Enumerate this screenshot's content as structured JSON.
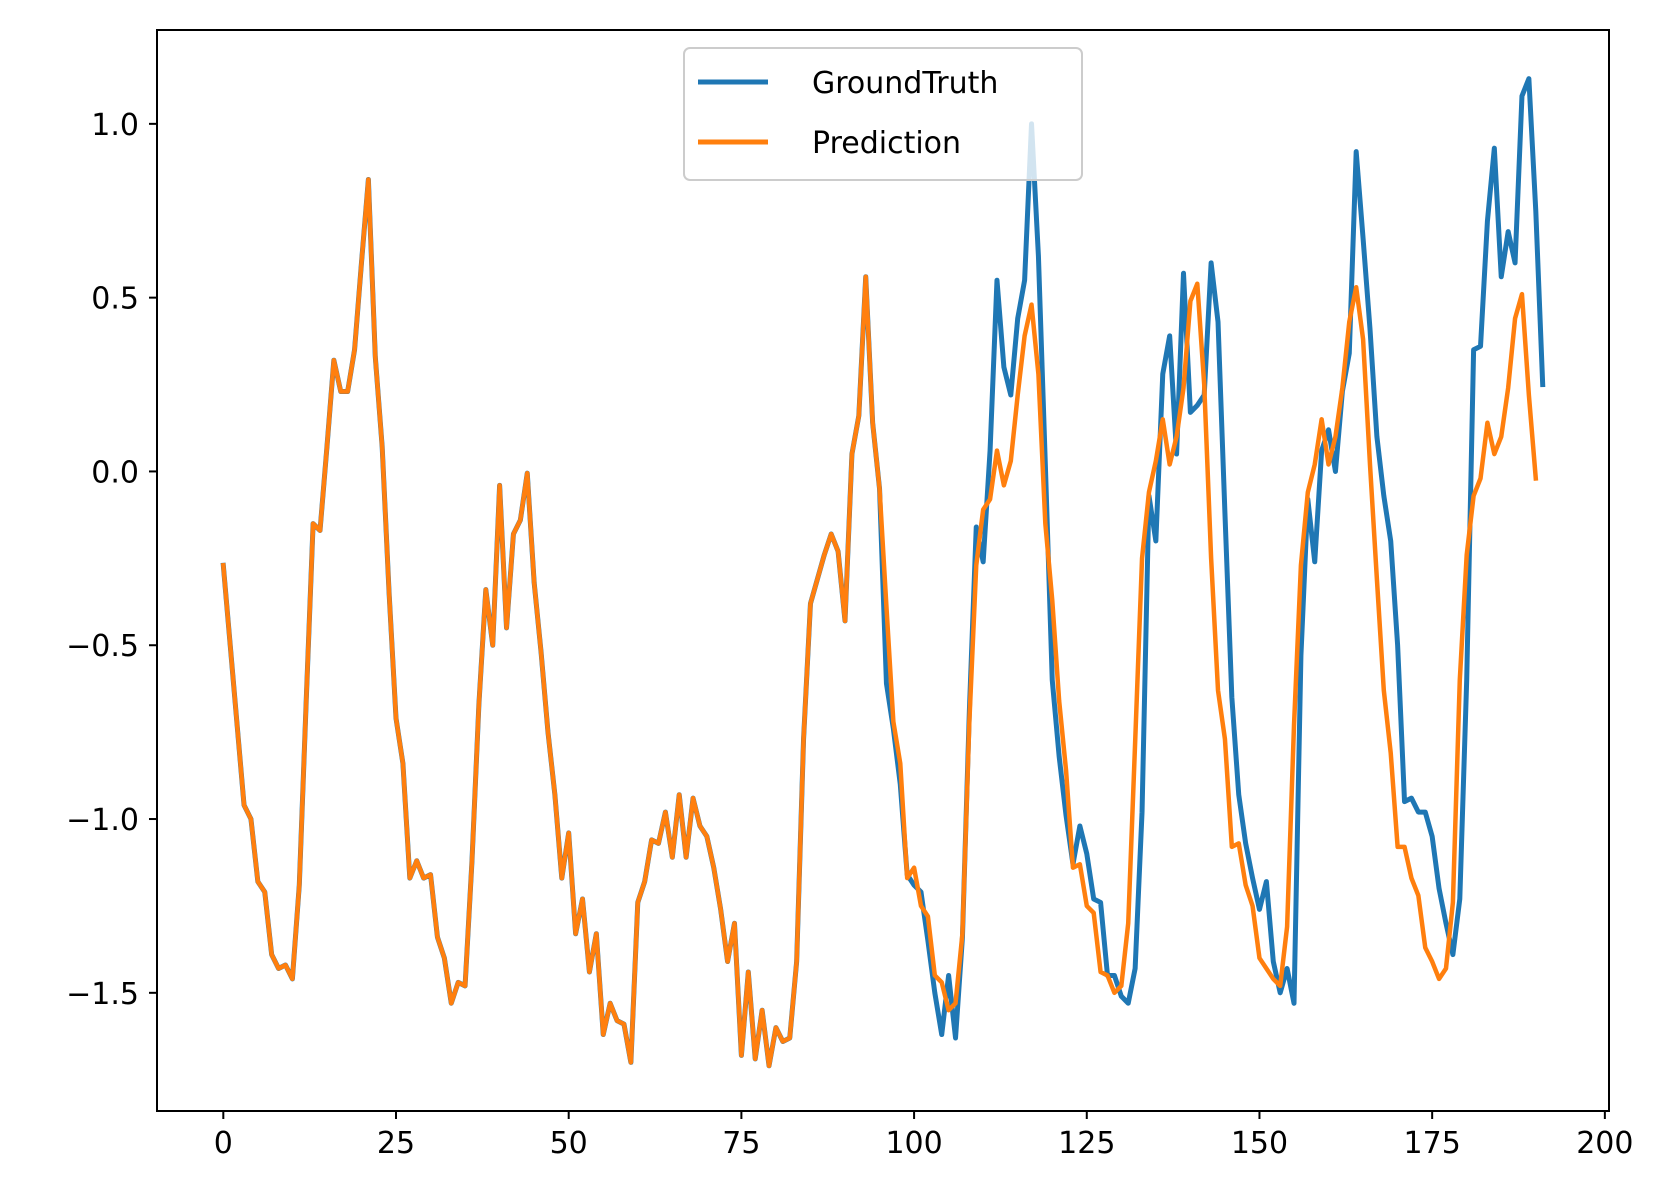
{
  "chart_data": {
    "type": "line",
    "title": "",
    "xlabel": "",
    "ylabel": "",
    "xlim": [
      -9.6,
      200.6
    ],
    "ylim": [
      -1.84,
      1.27
    ],
    "grid": false,
    "legend_placement": "upper center",
    "xticks": [
      0,
      25,
      50,
      75,
      100,
      125,
      150,
      175,
      200
    ],
    "xtick_labels": [
      "0",
      "25",
      "50",
      "75",
      "100",
      "125",
      "150",
      "175",
      "200"
    ],
    "yticks": [
      1.0,
      0.5,
      0.0,
      -0.5,
      -1.0,
      -1.5
    ],
    "ytick_labels": [
      "1.0",
      "0.5",
      "0.0",
      "−0.5",
      "−1.0",
      "−1.5"
    ],
    "series": [
      {
        "name": "GroundTruth",
        "color": "#1f77b4",
        "values": [
          -0.27,
          -0.5,
          -0.73,
          -0.96,
          -1.0,
          -1.18,
          -1.21,
          -1.39,
          -1.43,
          -1.42,
          -1.46,
          -1.19,
          -0.66,
          -0.15,
          -0.17,
          0.07,
          0.32,
          0.23,
          0.23,
          0.35,
          0.6,
          0.84,
          0.33,
          0.07,
          -0.35,
          -0.71,
          -0.84,
          -1.17,
          -1.12,
          -1.17,
          -1.16,
          -1.34,
          -1.4,
          -1.53,
          -1.47,
          -1.48,
          -1.12,
          -0.67,
          -0.34,
          -0.5,
          -0.04,
          -0.45,
          -0.18,
          -0.14,
          -0.005,
          -0.32,
          -0.52,
          -0.75,
          -0.93,
          -1.17,
          -1.04,
          -1.33,
          -1.23,
          -1.44,
          -1.33,
          -1.62,
          -1.53,
          -1.58,
          -1.59,
          -1.7,
          -1.24,
          -1.18,
          -1.06,
          -1.07,
          -0.98,
          -1.11,
          -0.93,
          -1.11,
          -0.94,
          -1.02,
          -1.05,
          -1.14,
          -1.26,
          -1.41,
          -1.3,
          -1.68,
          -1.44,
          -1.69,
          -1.55,
          -1.71,
          -1.6,
          -1.64,
          -1.63,
          -1.41,
          -0.77,
          -0.38,
          -0.31,
          -0.24,
          -0.18,
          -0.23,
          -0.43,
          0.05,
          0.16,
          0.56,
          0.14,
          -0.05,
          -0.61,
          -0.74,
          -0.9,
          -1.16,
          -1.19,
          -1.21,
          -1.35,
          -1.5,
          -1.62,
          -1.45,
          -1.63,
          -1.34,
          -0.69,
          -0.16,
          -0.26,
          0.06,
          0.55,
          0.3,
          0.22,
          0.44,
          0.55,
          1.0,
          0.62,
          0.02,
          -0.6,
          -0.82,
          -0.99,
          -1.13,
          -1.02,
          -1.1,
          -1.23,
          -1.24,
          -1.45,
          -1.45,
          -1.51,
          -1.53,
          -1.43,
          -0.98,
          -0.07,
          -0.2,
          0.28,
          0.39,
          0.05,
          0.57,
          0.17,
          0.19,
          0.22,
          0.6,
          0.43,
          -0.12,
          -0.65,
          -0.93,
          -1.07,
          -1.17,
          -1.26,
          -1.18,
          -1.41,
          -1.5,
          -1.43,
          -1.53,
          -0.53,
          -0.08,
          -0.26,
          0.06,
          0.12,
          0.0,
          0.23,
          0.34,
          0.92,
          0.67,
          0.41,
          0.1,
          -0.07,
          -0.2,
          -0.5,
          -0.95,
          -0.94,
          -0.98,
          -0.98,
          -1.05,
          -1.2,
          -1.3,
          -1.39,
          -1.23,
          -0.6,
          0.35,
          0.36,
          0.72,
          0.93,
          0.56,
          0.69,
          0.6,
          1.08,
          1.13,
          0.75,
          0.25
        ]
      },
      {
        "name": "Prediction",
        "color": "#ff7f0e",
        "values": [
          -0.27,
          -0.5,
          -0.73,
          -0.96,
          -1.0,
          -1.18,
          -1.21,
          -1.39,
          -1.43,
          -1.42,
          -1.46,
          -1.19,
          -0.66,
          -0.15,
          -0.17,
          0.07,
          0.32,
          0.23,
          0.23,
          0.35,
          0.6,
          0.84,
          0.33,
          0.07,
          -0.35,
          -0.71,
          -0.84,
          -1.17,
          -1.12,
          -1.17,
          -1.16,
          -1.34,
          -1.4,
          -1.53,
          -1.47,
          -1.48,
          -1.12,
          -0.67,
          -0.34,
          -0.5,
          -0.04,
          -0.45,
          -0.18,
          -0.14,
          -0.005,
          -0.32,
          -0.52,
          -0.75,
          -0.93,
          -1.17,
          -1.04,
          -1.33,
          -1.23,
          -1.44,
          -1.33,
          -1.62,
          -1.53,
          -1.58,
          -1.59,
          -1.7,
          -1.24,
          -1.18,
          -1.06,
          -1.07,
          -0.98,
          -1.11,
          -0.93,
          -1.11,
          -0.94,
          -1.02,
          -1.05,
          -1.14,
          -1.26,
          -1.41,
          -1.3,
          -1.68,
          -1.44,
          -1.69,
          -1.55,
          -1.71,
          -1.6,
          -1.64,
          -1.63,
          -1.41,
          -0.77,
          -0.38,
          -0.31,
          -0.24,
          -0.18,
          -0.23,
          -0.43,
          0.05,
          0.16,
          0.56,
          0.14,
          -0.05,
          -0.39,
          -0.72,
          -0.84,
          -1.17,
          -1.14,
          -1.25,
          -1.28,
          -1.45,
          -1.47,
          -1.55,
          -1.53,
          -1.33,
          -0.72,
          -0.27,
          -0.11,
          -0.08,
          0.06,
          -0.04,
          0.03,
          0.22,
          0.39,
          0.48,
          0.28,
          -0.15,
          -0.37,
          -0.66,
          -0.86,
          -1.14,
          -1.13,
          -1.25,
          -1.27,
          -1.44,
          -1.45,
          -1.5,
          -1.48,
          -1.3,
          -0.78,
          -0.25,
          -0.06,
          0.03,
          0.15,
          0.02,
          0.1,
          0.24,
          0.49,
          0.54,
          0.25,
          -0.25,
          -0.63,
          -0.77,
          -1.08,
          -1.07,
          -1.19,
          -1.25,
          -1.4,
          -1.43,
          -1.46,
          -1.48,
          -1.31,
          -0.73,
          -0.27,
          -0.06,
          0.02,
          0.15,
          0.02,
          0.1,
          0.24,
          0.43,
          0.53,
          0.38,
          0.02,
          -0.31,
          -0.63,
          -0.81,
          -1.08,
          -1.08,
          -1.17,
          -1.22,
          -1.37,
          -1.41,
          -1.46,
          -1.43,
          -1.24,
          -0.6,
          -0.24,
          -0.07,
          -0.02,
          0.14,
          0.05,
          0.1,
          0.24,
          0.44,
          0.51,
          0.22,
          -0.02
        ]
      }
    ]
  }
}
